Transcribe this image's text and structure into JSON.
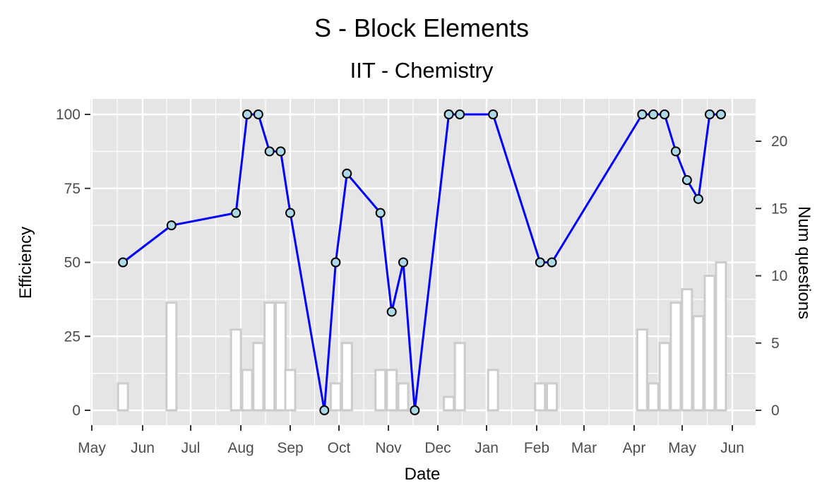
{
  "chart_data": {
    "type": "line",
    "title": "S - Block Elements",
    "subtitle": "IIT - Chemistry",
    "xlabel": "Date",
    "ylabel": "Efficiency",
    "y2label": "Num questions",
    "x_ticks": [
      "May",
      "Jun",
      "Jul",
      "Aug",
      "Sep",
      "Oct",
      "Nov",
      "Dec",
      "Jan",
      "Feb",
      "Mar",
      "Apr",
      "May",
      "Jun"
    ],
    "y_ticks": [
      "0",
      "25",
      "50",
      "75",
      "100"
    ],
    "y2_ticks": [
      "0",
      "5",
      "10",
      "15",
      "20"
    ],
    "ylim": [
      0,
      100
    ],
    "y2lim": [
      0,
      20
    ],
    "grid": true,
    "colors": {
      "panel": "#e5e5e5",
      "grid": "#ffffff",
      "line": "#0000ff",
      "point_fill": "#add8e6",
      "point_stroke": "#000000",
      "bar_stroke": "#cccccc",
      "bar_fill": "#ffffff"
    },
    "series": [
      {
        "type": "line",
        "axis": "left",
        "x": [
          "2018-05-20",
          "2018-06-19",
          "2018-07-29",
          "2018-08-05",
          "2018-08-12",
          "2018-08-19",
          "2018-08-26",
          "2018-09-01",
          "2018-09-22",
          "2018-09-29",
          "2018-10-06",
          "2018-10-27",
          "2018-11-03",
          "2018-11-10",
          "2018-11-17",
          "2018-12-08",
          "2018-12-15",
          "2019-01-05",
          "2019-02-03",
          "2019-02-10",
          "2019-04-06",
          "2019-04-13",
          "2019-04-20",
          "2019-04-27",
          "2019-05-04",
          "2019-05-11",
          "2019-05-18",
          "2019-05-25"
        ],
        "values": [
          50,
          62.5,
          66.7,
          100,
          100,
          87.5,
          87.5,
          66.7,
          0,
          50,
          80,
          66.7,
          33.3,
          50,
          0,
          100,
          100,
          100,
          50,
          50,
          100,
          100,
          100,
          87.5,
          77.8,
          71.4,
          100,
          100
        ]
      },
      {
        "type": "bar",
        "axis": "right",
        "x": [
          "2018-05-20",
          "2018-06-19",
          "2018-07-29",
          "2018-08-05",
          "2018-08-12",
          "2018-08-19",
          "2018-08-26",
          "2018-09-01",
          "2018-09-22",
          "2018-09-29",
          "2018-10-06",
          "2018-10-27",
          "2018-11-03",
          "2018-11-10",
          "2018-11-17",
          "2018-12-08",
          "2018-12-15",
          "2019-01-05",
          "2019-02-03",
          "2019-02-10",
          "2019-04-06",
          "2019-04-13",
          "2019-04-20",
          "2019-04-27",
          "2019-05-04",
          "2019-05-11",
          "2019-05-18",
          "2019-05-25"
        ],
        "values": [
          2,
          8,
          6,
          3,
          5,
          8,
          8,
          3,
          0,
          2,
          5,
          3,
          3,
          2,
          0,
          1,
          5,
          3,
          2,
          2,
          6,
          2,
          5,
          8,
          9,
          7,
          10,
          11
        ]
      }
    ]
  }
}
